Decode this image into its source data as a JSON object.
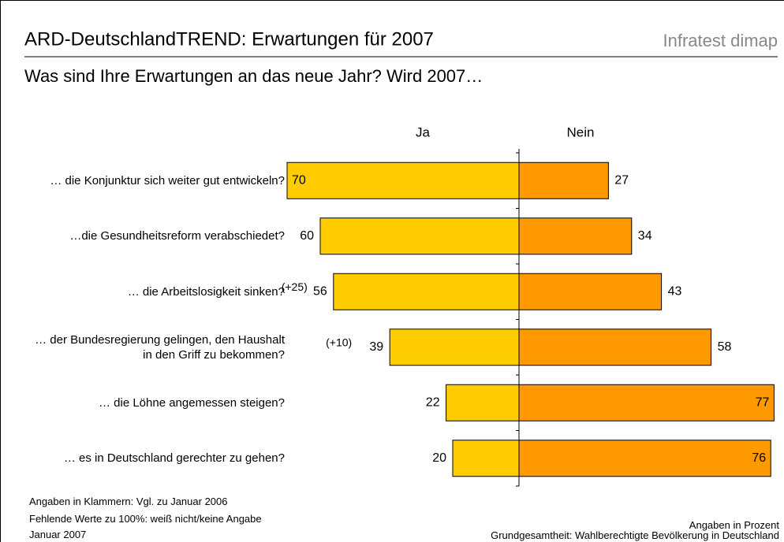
{
  "header": {
    "title": "ARD-DeutschlandTREND: Erwartungen für 2007",
    "brand": "Infratest dimap"
  },
  "chart_data": {
    "type": "diverging_bar",
    "subtitle": "Was sind Ihre Erwartungen an das neue Jahr? Wird 2007…",
    "categories": [
      "… die Konjunktur sich weiter gut entwickeln?",
      "…die Gesundheitsreform verabschiedet?",
      "… die Arbeitslosigkeit sinken?",
      "… der Bundesregierung gelingen, den Haushalt in den Griff zu bekommen?",
      "… die Löhne angemessen steigen?",
      "… es in Deutschland gerechter zu gehen?"
    ],
    "series": [
      {
        "name": "Ja",
        "color": "#ffcc00",
        "values": [
          70,
          60,
          56,
          39,
          22,
          20
        ]
      },
      {
        "name": "Nein",
        "color": "#ff9900",
        "values": [
          27,
          34,
          43,
          58,
          77,
          76
        ]
      }
    ],
    "value_notes": [
      null,
      null,
      "(+25)",
      "(+10)",
      null,
      null
    ]
  },
  "footer": {
    "left": [
      "Angaben in Klammern: Vgl. zu Januar 2006",
      "Fehlende Werte zu 100%: weiß nicht/keine Angabe",
      "Januar 2007"
    ],
    "right": [
      "Angaben in Prozent",
      "Grundgesamtheit: Wahlberechtigte Bevölkerung in Deutschland"
    ]
  }
}
